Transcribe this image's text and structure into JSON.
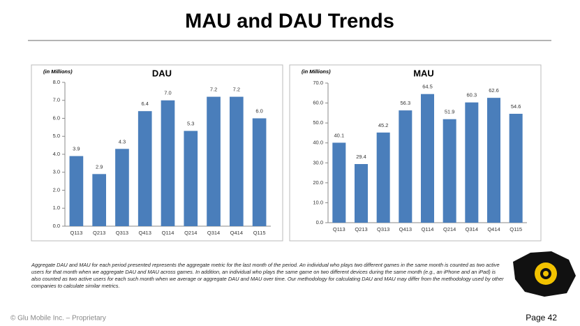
{
  "slide": {
    "title": "MAU and DAU Trends",
    "footnote": "Aggregate DAU and MAU for each period presented represents the aggregate metric for the last month of the period.  An individual who plays two different games in the same month is counted as two active users for that month when we aggregate DAU and MAU across games. In addition, an individual who plays the same game on two different devices during the same month (e.g., an iPhone and an iPad) is also counted as two active users for each such month when we average or aggregate DAU and MAU over time.  Our methodology for calculating DAU and MAU may differ from the methodology used by other companies to calculate similar metrics.",
    "footer": "© Glu Mobile Inc. – Proprietary",
    "page": "Page 42"
  },
  "chart_data": [
    {
      "type": "bar",
      "title": "DAU",
      "subtitle": "(in Millions)",
      "categories": [
        "Q113",
        "Q213",
        "Q313",
        "Q413",
        "Q114",
        "Q214",
        "Q314",
        "Q414",
        "Q115"
      ],
      "values": [
        3.9,
        2.9,
        4.3,
        6.4,
        7.0,
        5.3,
        7.2,
        7.2,
        6.0
      ],
      "value_labels": [
        "3.9",
        "2.9",
        "4.3",
        "6.4",
        "7.0",
        "5.3",
        "7.2",
        "7.2",
        "6.0"
      ],
      "color": "#4a7ebb",
      "ylim": [
        0,
        8
      ],
      "yticks": [
        {
          "value": 0,
          "label": "0.0"
        },
        {
          "value": 1,
          "label": "1.0"
        },
        {
          "value": 2,
          "label": "2.0"
        },
        {
          "value": 3,
          "label": "3.0"
        },
        {
          "value": 4,
          "label": "4.0"
        },
        {
          "value": 5,
          "label": "5.0"
        },
        {
          "value": 6,
          "label": "6.0"
        },
        {
          "value": 7,
          "label": "7.0"
        },
        {
          "value": 8,
          "label": "8.0"
        }
      ],
      "grid": false
    },
    {
      "type": "bar",
      "title": "MAU",
      "subtitle": "(in Millions)",
      "categories": [
        "Q113",
        "Q213",
        "Q313",
        "Q413",
        "Q114",
        "Q214",
        "Q314",
        "Q414",
        "Q115"
      ],
      "values": [
        40.1,
        29.4,
        45.2,
        56.3,
        64.5,
        51.9,
        60.3,
        62.6,
        54.6
      ],
      "color": "#4a7ebb",
      "ylim": [
        0,
        70
      ],
      "yticks": [
        {
          "value": 0,
          "label": "0.0"
        },
        {
          "value": 10,
          "label": "10.0"
        },
        {
          "value": 20,
          "label": "20.0"
        },
        {
          "value": 30,
          "label": "30.0"
        },
        {
          "value": 40,
          "label": "40.0"
        },
        {
          "value": 50,
          "label": "50.0"
        },
        {
          "value": 60,
          "label": "60.0"
        },
        {
          "value": 70,
          "label": "70.0"
        }
      ],
      "grid": false
    }
  ]
}
